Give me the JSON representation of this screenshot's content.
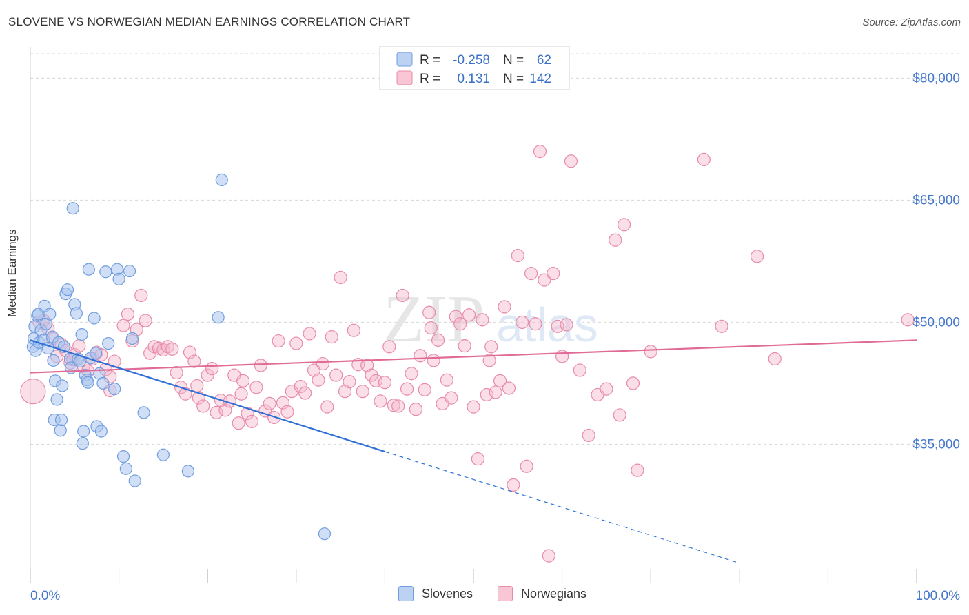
{
  "header": {
    "title": "SLOVENE VS NORWEGIAN MEDIAN EARNINGS CORRELATION CHART",
    "source": "Source: ZipAtlas.com"
  },
  "watermark": {
    "zip": "ZIP",
    "atlas": "atlas"
  },
  "colors": {
    "slovenes": "#6f9de0",
    "slovenes_fill": "#a9c5ef",
    "slovenes_line": "#2f6fd6",
    "norwegians": "#e88aa9",
    "norwegians_fill": "#f4b9cb",
    "norwegians_line": "#e06b96",
    "axis_label": "#4477cc",
    "grid": "#d8d8d8"
  },
  "legend_top": {
    "rows": [
      {
        "r_label": "R =",
        "r_value": "-0.258",
        "n_label": "N =",
        "n_value": "62"
      },
      {
        "r_label": "R =",
        "r_value": "0.131",
        "n_label": "N =",
        "n_value": "142"
      }
    ]
  },
  "chart_data": {
    "type": "scatter",
    "title": "SLOVENE VS NORWEGIAN MEDIAN EARNINGS CORRELATION CHART",
    "xlabel": "",
    "ylabel": "Median Earnings",
    "xlim": [
      0,
      100
    ],
    "ylim": [
      18000,
      83000
    ],
    "x_tick_labels": [
      "0.0%",
      "100.0%"
    ],
    "y_ticks": [
      35000,
      50000,
      65000,
      80000
    ],
    "y_tick_labels": [
      "$35,000",
      "$50,000",
      "$65,000",
      "$80,000"
    ],
    "grid": true,
    "legend_position": "top-center",
    "series": [
      {
        "name": "Slovenes",
        "r": -0.258,
        "n": 62,
        "trend": {
          "x0": 0,
          "y0": 47800,
          "x1": 40,
          "y1": 34100,
          "dash_to_x": 80,
          "dash_to_y": 20400
        },
        "points": [
          [
            0.3,
            47000
          ],
          [
            0.5,
            49500
          ],
          [
            0.4,
            48000
          ],
          [
            0.6,
            46500
          ],
          [
            0.8,
            50800
          ],
          [
            1.0,
            47500
          ],
          [
            1.2,
            49000
          ],
          [
            1.5,
            47800
          ],
          [
            1.6,
            52000
          ],
          [
            1.8,
            49800
          ],
          [
            2.0,
            46800
          ],
          [
            2.2,
            51000
          ],
          [
            2.5,
            48200
          ],
          [
            2.6,
            45300
          ],
          [
            2.8,
            42800
          ],
          [
            2.7,
            38000
          ],
          [
            3.0,
            40500
          ],
          [
            3.2,
            47500
          ],
          [
            3.4,
            36700
          ],
          [
            3.5,
            38000
          ],
          [
            3.6,
            42200
          ],
          [
            3.8,
            47000
          ],
          [
            4.0,
            53500
          ],
          [
            4.2,
            54000
          ],
          [
            4.5,
            45500
          ],
          [
            4.6,
            44400
          ],
          [
            4.8,
            64000
          ],
          [
            5.0,
            52200
          ],
          [
            5.2,
            51100
          ],
          [
            5.4,
            45500
          ],
          [
            5.6,
            45200
          ],
          [
            5.8,
            48500
          ],
          [
            5.9,
            35100
          ],
          [
            6.0,
            36600
          ],
          [
            6.2,
            43500
          ],
          [
            6.4,
            42900
          ],
          [
            6.5,
            42600
          ],
          [
            6.6,
            56500
          ],
          [
            6.8,
            45600
          ],
          [
            7.2,
            50500
          ],
          [
            7.4,
            46200
          ],
          [
            7.5,
            37200
          ],
          [
            7.8,
            43700
          ],
          [
            8.0,
            36600
          ],
          [
            8.2,
            42500
          ],
          [
            8.5,
            56200
          ],
          [
            8.8,
            47400
          ],
          [
            9.5,
            41800
          ],
          [
            9.8,
            56500
          ],
          [
            10.0,
            55300
          ],
          [
            10.5,
            33500
          ],
          [
            10.8,
            32000
          ],
          [
            11.2,
            56300
          ],
          [
            11.5,
            48000
          ],
          [
            11.8,
            30500
          ],
          [
            12.8,
            38900
          ],
          [
            15.0,
            33700
          ],
          [
            17.8,
            31700
          ],
          [
            21.2,
            50600
          ],
          [
            21.6,
            67500
          ],
          [
            33.2,
            24000
          ],
          [
            0.9,
            51000
          ]
        ]
      },
      {
        "name": "Norwegians",
        "r": 0.131,
        "n": 142,
        "trend": {
          "x0": 0,
          "y0": 43800,
          "x1": 100,
          "y1": 47800
        },
        "points": [
          [
            0.3,
            41500
          ],
          [
            1.0,
            50000
          ],
          [
            1.5,
            50200
          ],
          [
            2.0,
            49200
          ],
          [
            2.5,
            48000
          ],
          [
            3.0,
            45800
          ],
          [
            3.5,
            47300
          ],
          [
            4.0,
            46500
          ],
          [
            4.5,
            45000
          ],
          [
            5.0,
            46000
          ],
          [
            5.5,
            47100
          ],
          [
            6.0,
            44600
          ],
          [
            6.5,
            44000
          ],
          [
            7.0,
            45500
          ],
          [
            7.5,
            46300
          ],
          [
            8.0,
            46000
          ],
          [
            8.5,
            44200
          ],
          [
            9.0,
            43300
          ],
          [
            9.5,
            45200
          ],
          [
            10.5,
            49600
          ],
          [
            11.0,
            51000
          ],
          [
            11.5,
            47700
          ],
          [
            12.0,
            49100
          ],
          [
            12.5,
            53300
          ],
          [
            13.0,
            50200
          ],
          [
            13.5,
            46200
          ],
          [
            14.0,
            47000
          ],
          [
            14.5,
            46800
          ],
          [
            15.0,
            46600
          ],
          [
            15.5,
            47000
          ],
          [
            16.0,
            46700
          ],
          [
            16.5,
            43800
          ],
          [
            17.0,
            42000
          ],
          [
            17.5,
            41200
          ],
          [
            18.0,
            46300
          ],
          [
            18.5,
            45200
          ],
          [
            19.0,
            40700
          ],
          [
            19.5,
            39700
          ],
          [
            20.0,
            43500
          ],
          [
            20.5,
            44300
          ],
          [
            21.0,
            38900
          ],
          [
            21.5,
            40400
          ],
          [
            22.0,
            39200
          ],
          [
            22.5,
            40300
          ],
          [
            23.0,
            43500
          ],
          [
            23.5,
            37600
          ],
          [
            24.0,
            42800
          ],
          [
            24.5,
            38800
          ],
          [
            25.0,
            37800
          ],
          [
            25.5,
            42000
          ],
          [
            26.0,
            44700
          ],
          [
            26.5,
            39100
          ],
          [
            27.0,
            40000
          ],
          [
            27.5,
            38300
          ],
          [
            28.0,
            47700
          ],
          [
            28.5,
            40100
          ],
          [
            29.0,
            39000
          ],
          [
            29.5,
            41500
          ],
          [
            30.0,
            47400
          ],
          [
            30.5,
            42100
          ],
          [
            31.0,
            41300
          ],
          [
            31.5,
            48600
          ],
          [
            32.0,
            44100
          ],
          [
            32.5,
            42900
          ],
          [
            33.0,
            44900
          ],
          [
            33.5,
            39600
          ],
          [
            34.0,
            48200
          ],
          [
            34.5,
            43500
          ],
          [
            35.0,
            55500
          ],
          [
            35.5,
            41500
          ],
          [
            36.0,
            42700
          ],
          [
            36.5,
            49000
          ],
          [
            37.0,
            44800
          ],
          [
            37.5,
            41500
          ],
          [
            38.0,
            44700
          ],
          [
            38.5,
            43500
          ],
          [
            39.0,
            42800
          ],
          [
            39.5,
            40300
          ],
          [
            40.0,
            42600
          ],
          [
            40.5,
            47000
          ],
          [
            41.0,
            39800
          ],
          [
            41.5,
            39700
          ],
          [
            42.0,
            53300
          ],
          [
            42.5,
            41800
          ],
          [
            43.0,
            43700
          ],
          [
            43.5,
            39300
          ],
          [
            44.0,
            45900
          ],
          [
            44.5,
            41700
          ],
          [
            45.0,
            51200
          ],
          [
            45.5,
            45300
          ],
          [
            46.0,
            47800
          ],
          [
            46.5,
            40000
          ],
          [
            47.0,
            42900
          ],
          [
            47.5,
            40700
          ],
          [
            48.0,
            50700
          ],
          [
            48.5,
            49800
          ],
          [
            49.0,
            47100
          ],
          [
            49.5,
            50900
          ],
          [
            50.0,
            39600
          ],
          [
            50.5,
            33200
          ],
          [
            51.0,
            50300
          ],
          [
            51.5,
            41100
          ],
          [
            52.0,
            47000
          ],
          [
            52.5,
            41400
          ],
          [
            53.0,
            42800
          ],
          [
            53.5,
            51900
          ],
          [
            54.0,
            41900
          ],
          [
            54.5,
            30000
          ],
          [
            55.0,
            58200
          ],
          [
            55.5,
            50000
          ],
          [
            56.0,
            32300
          ],
          [
            56.5,
            56000
          ],
          [
            57.0,
            49800
          ],
          [
            57.5,
            71000
          ],
          [
            58.0,
            55200
          ],
          [
            58.5,
            21300
          ],
          [
            59.0,
            56000
          ],
          [
            59.5,
            49500
          ],
          [
            60.0,
            45800
          ],
          [
            61.0,
            69800
          ],
          [
            62.0,
            44100
          ],
          [
            63.0,
            36100
          ],
          [
            64.0,
            41100
          ],
          [
            65.0,
            41800
          ],
          [
            66.0,
            60100
          ],
          [
            66.5,
            38600
          ],
          [
            67.0,
            62000
          ],
          [
            68.0,
            42500
          ],
          [
            68.5,
            31800
          ],
          [
            70.0,
            46400
          ],
          [
            76.0,
            70000
          ],
          [
            78.0,
            49500
          ],
          [
            82.0,
            58100
          ],
          [
            84.0,
            45500
          ],
          [
            99.0,
            50300
          ],
          [
            4.8,
            45400
          ],
          [
            9.0,
            41600
          ],
          [
            60.5,
            49700
          ],
          [
            45.2,
            49300
          ],
          [
            51.8,
            45300
          ],
          [
            18.8,
            42200
          ],
          [
            23.8,
            41200
          ]
        ]
      }
    ]
  },
  "legend_bottom": {
    "items": [
      {
        "label": "Slovenes"
      },
      {
        "label": "Norwegians"
      }
    ]
  }
}
